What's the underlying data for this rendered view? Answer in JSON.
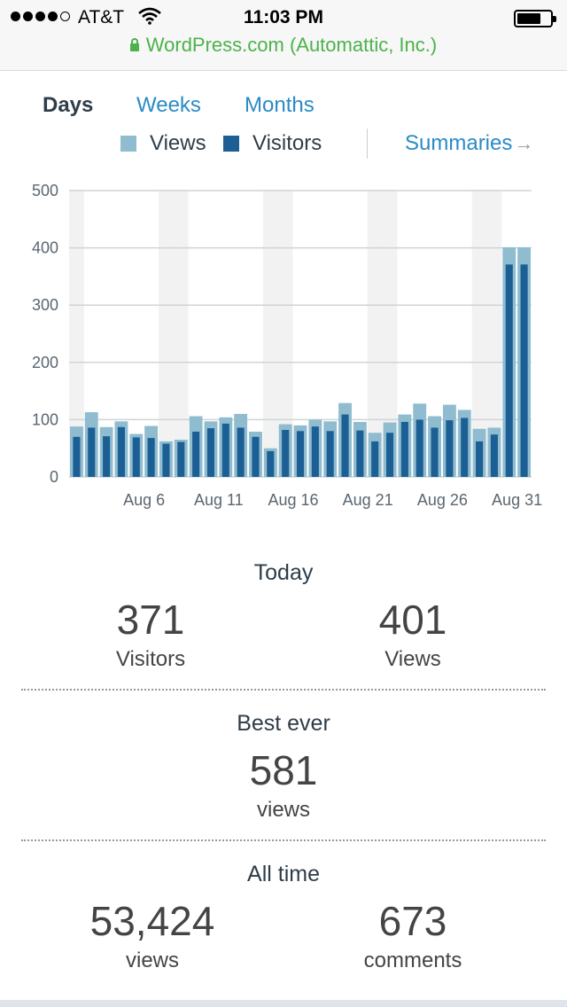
{
  "status_bar": {
    "carrier": "AT&T",
    "time": "11:03 PM",
    "url": "WordPress.com (Automattic, Inc.)",
    "signal_icon": "signal-dots-icon",
    "wifi_icon": "wifi-icon",
    "battery_icon": "battery-icon",
    "lock_icon": "lock-icon"
  },
  "tabs": [
    {
      "label": "Days",
      "active": true
    },
    {
      "label": "Weeks",
      "active": false
    },
    {
      "label": "Months",
      "active": false
    }
  ],
  "legend": {
    "views_label": "Views",
    "visitors_label": "Visitors",
    "views_color": "#8fbccf",
    "visitors_color": "#1b5f94",
    "summaries_label": "Summaries",
    "summaries_arrow": "→"
  },
  "chart_data": {
    "type": "bar",
    "ylim": [
      0,
      500
    ],
    "yticks": [
      0,
      100,
      200,
      300,
      400,
      500
    ],
    "x_tick_labels": [
      "Aug 6",
      "Aug 11",
      "Aug 16",
      "Aug 21",
      "Aug 26",
      "Aug 31"
    ],
    "x_tick_indices": [
      5,
      10,
      15,
      20,
      25,
      30
    ],
    "weekend_indices": [
      0,
      6,
      7,
      13,
      14,
      20,
      21,
      27,
      28
    ],
    "categories": [
      "Aug 1",
      "Aug 2",
      "Aug 3",
      "Aug 4",
      "Aug 5",
      "Aug 6",
      "Aug 7",
      "Aug 8",
      "Aug 9",
      "Aug 10",
      "Aug 11",
      "Aug 12",
      "Aug 13",
      "Aug 14",
      "Aug 15",
      "Aug 16",
      "Aug 17",
      "Aug 18",
      "Aug 19",
      "Aug 20",
      "Aug 21",
      "Aug 22",
      "Aug 23",
      "Aug 24",
      "Aug 25",
      "Aug 26",
      "Aug 27",
      "Aug 28",
      "Aug 29",
      "Aug 30",
      "Aug 31"
    ],
    "series": [
      {
        "name": "Views",
        "color": "#8fbccf",
        "values": [
          88,
          113,
          87,
          97,
          75,
          89,
          62,
          65,
          106,
          97,
          104,
          110,
          79,
          50,
          92,
          90,
          100,
          97,
          129,
          96,
          77,
          95,
          109,
          128,
          106,
          126,
          117,
          84,
          86,
          401,
          401
        ]
      },
      {
        "name": "Visitors",
        "color": "#1b5f94",
        "values": [
          70,
          86,
          71,
          87,
          69,
          68,
          58,
          61,
          79,
          85,
          93,
          86,
          70,
          45,
          82,
          80,
          88,
          80,
          109,
          81,
          62,
          77,
          96,
          100,
          86,
          99,
          103,
          62,
          74,
          371,
          371
        ]
      }
    ]
  },
  "today": {
    "title": "Today",
    "visitors_value": "371",
    "visitors_label": "Visitors",
    "views_value": "401",
    "views_label": "Views"
  },
  "best_ever": {
    "title": "Best ever",
    "value": "581",
    "label": "views"
  },
  "all_time": {
    "title": "All time",
    "views_value": "53,424",
    "views_label": "views",
    "comments_value": "673",
    "comments_label": "comments"
  }
}
